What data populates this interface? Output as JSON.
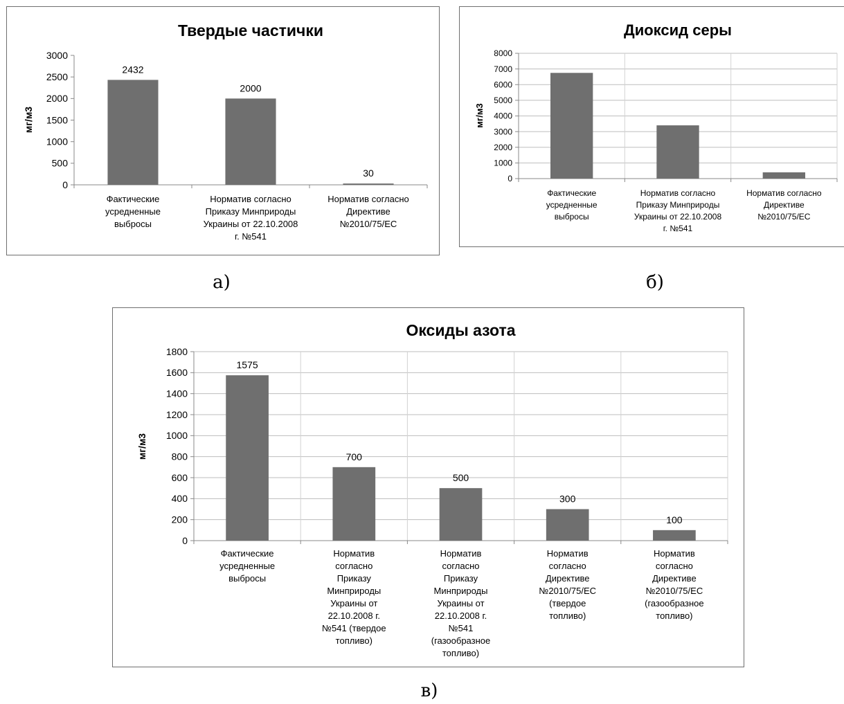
{
  "chart_data": [
    {
      "type": "bar",
      "title": "Твердые частички",
      "ylabel": "мг/м3",
      "xlabel": "",
      "ylim": [
        0,
        3000
      ],
      "yticks": [
        0,
        500,
        1000,
        1500,
        2000,
        2500,
        3000
      ],
      "grid": false,
      "categories": [
        [
          "Фактические",
          "усредненные",
          "выбросы"
        ],
        [
          "Норматив согласно",
          "Приказу Минприроды",
          "Украины от 22.10.2008",
          "г. №541"
        ],
        [
          "Норматив согласно",
          "Директиве",
          "№2010/75/ЕС"
        ]
      ],
      "values": [
        2432,
        2000,
        30
      ],
      "data_labels": [
        "2432",
        "2000",
        "30"
      ],
      "bar_color": "#6f6f6f"
    },
    {
      "type": "bar",
      "title": "Диоксид серы",
      "ylabel": "мг/м3",
      "xlabel": "",
      "ylim": [
        0,
        8000
      ],
      "yticks": [
        0,
        1000,
        2000,
        3000,
        4000,
        5000,
        6000,
        7000,
        8000
      ],
      "grid": true,
      "categories": [
        [
          "Фактические",
          "усредненные",
          "выбросы"
        ],
        [
          "Норматив согласно",
          "Приказу Минприроды",
          "Украины от 22.10.2008",
          "г. №541"
        ],
        [
          "Норматив согласно",
          "Директиве",
          "№2010/75/ЕС"
        ]
      ],
      "values": [
        6750,
        3400,
        400
      ],
      "data_labels": [],
      "bar_color": "#6f6f6f"
    },
    {
      "type": "bar",
      "title": "Оксиды азота",
      "ylabel": "мг/м3",
      "xlabel": "",
      "ylim": [
        0,
        1800
      ],
      "yticks": [
        0,
        200,
        400,
        600,
        800,
        1000,
        1200,
        1400,
        1600,
        1800
      ],
      "grid": true,
      "categories": [
        [
          "Фактические",
          "усредненные",
          "выбросы"
        ],
        [
          "Норматив",
          "согласно",
          "Приказу",
          "Минприроды",
          "Украины от",
          "22.10.2008 г.",
          "№541 (твердое",
          "топливо)"
        ],
        [
          "Норматив",
          "согласно",
          "Приказу",
          "Минприроды",
          "Украины от",
          "22.10.2008 г.",
          "№541",
          "(газообразное",
          "топливо)"
        ],
        [
          "Норматив",
          "согласно",
          "Директиве",
          "№2010/75/ЕС",
          "(твердое",
          "топливо)"
        ],
        [
          "Норматив",
          "согласно",
          "Директиве",
          "№2010/75/ЕС",
          "(газообразное",
          "топливо)"
        ]
      ],
      "values": [
        1575,
        700,
        500,
        300,
        100
      ],
      "data_labels": [
        "1575",
        "700",
        "500",
        "300",
        "100"
      ],
      "bar_color": "#6f6f6f"
    }
  ],
  "captions": {
    "a": "а)",
    "b": "б)",
    "c": "в)"
  }
}
